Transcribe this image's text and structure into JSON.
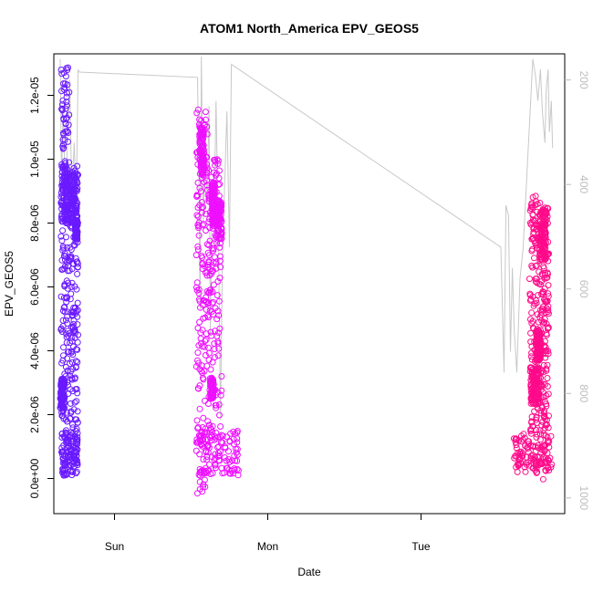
{
  "chart_data": {
    "type": "scatter",
    "title": "ATOM1 North_America EPV_GEOS5",
    "xlabel": "Date",
    "ylabel": "EPV_GEOS5",
    "x_ticks": [
      {
        "label": "Sun",
        "t": 0
      },
      {
        "label": "Mon",
        "t": 24
      },
      {
        "label": "Tue",
        "t": 48
      }
    ],
    "xlim_hours": [
      -9.5,
      70.5
    ],
    "ylim": [
      -1.1e-06,
      1.33e-05
    ],
    "y_ticks": [
      {
        "v": 0,
        "label": "0.0e+00"
      },
      {
        "v": 2e-06,
        "label": "2.0e-06"
      },
      {
        "v": 4e-06,
        "label": "4.0e-06"
      },
      {
        "v": 6e-06,
        "label": "6.0e-06"
      },
      {
        "v": 8e-06,
        "label": "8.0e-06"
      },
      {
        "v": 1e-05,
        "label": "1.0e-05"
      },
      {
        "v": 1.2e-05,
        "label": "1.2e-05"
      }
    ],
    "right_axis": {
      "lim": [
        1030,
        150
      ],
      "ticks": [
        {
          "v": 200,
          "label": "200"
        },
        {
          "v": 400,
          "label": "400"
        },
        {
          "v": 600,
          "label": "600"
        },
        {
          "v": 800,
          "label": "800"
        },
        {
          "v": 1000,
          "label": "1000"
        }
      ],
      "color": "#bdbdbd"
    },
    "series": [
      {
        "color": "#6a1aff",
        "segments": [
          {
            "t0": -8.4,
            "t1": -7.0,
            "low": 0.0,
            "high": 1.29e-05
          },
          {
            "t0": -7.0,
            "t1": -5.7,
            "low": 3e-07,
            "high": 9.8e-06
          }
        ],
        "clusters": [
          {
            "t0": -8.3,
            "t1": -7.3,
            "v": 9e-06,
            "spread": 1e-06
          },
          {
            "t0": -7.4,
            "t1": -5.8,
            "v": 8.8e-06,
            "spread": 8e-07
          },
          {
            "t0": -8.3,
            "t1": -5.7,
            "v": 8e-07,
            "spread": 7e-07
          },
          {
            "t0": -6.2,
            "t1": -5.8,
            "v": 7.8e-06,
            "spread": 3e-07
          },
          {
            "t0": -8.5,
            "t1": -7.8,
            "v": 2.7e-06,
            "spread": 5e-07
          }
        ]
      },
      {
        "color": "#ee10ff",
        "segments": [
          {
            "t0": 12.8,
            "t1": 14.6,
            "low": -5e-07,
            "high": 1.16e-05
          },
          {
            "t0": 14.6,
            "t1": 16.8,
            "low": 2e-07,
            "high": 1e-05
          }
        ],
        "clusters": [
          {
            "t0": 12.8,
            "t1": 19.5,
            "v": 8e-07,
            "spread": 7e-07
          },
          {
            "t0": 13.3,
            "t1": 14.0,
            "v": 1.02e-05,
            "spread": 8e-07
          },
          {
            "t0": 15.2,
            "t1": 15.7,
            "v": 8.6e-06,
            "spread": 7e-07
          },
          {
            "t0": 15.8,
            "t1": 16.8,
            "v": 8.1e-06,
            "spread": 6e-07
          },
          {
            "t0": 15.0,
            "t1": 15.5,
            "v": 2.8e-06,
            "spread": 3e-07
          }
        ]
      },
      {
        "color": "#ff0a8a",
        "segments": [
          {
            "t0": 65.0,
            "t1": 66.8,
            "low": 1e-07,
            "high": 8.9e-06
          },
          {
            "t0": 66.8,
            "t1": 68.0,
            "low": -1e-07,
            "high": 8.5e-06
          }
        ],
        "clusters": [
          {
            "t0": 62.5,
            "t1": 68.5,
            "v": 8e-07,
            "spread": 6e-07
          },
          {
            "t0": 65.2,
            "t1": 66.5,
            "v": 2.9e-06,
            "spread": 6e-07
          },
          {
            "t0": 66.5,
            "t1": 67.6,
            "v": 7.6e-06,
            "spread": 8e-07
          },
          {
            "t0": 66.0,
            "t1": 66.8,
            "v": 4.2e-06,
            "spread": 5e-07
          }
        ]
      }
    ],
    "pressure_line": {
      "color": "#c8c8c8",
      "points": [
        [
          -8.5,
          160
        ],
        [
          -8.3,
          380
        ],
        [
          -8.0,
          250
        ],
        [
          -7.7,
          440
        ],
        [
          -7.3,
          300
        ],
        [
          -7.0,
          200
        ],
        [
          -6.7,
          420
        ],
        [
          -6.3,
          320
        ],
        [
          -6.0,
          450
        ],
        [
          -5.7,
          180
        ],
        [
          -5.5,
          185
        ],
        [
          13.0,
          195
        ],
        [
          13.2,
          380
        ],
        [
          13.4,
          640
        ],
        [
          13.6,
          155
        ],
        [
          13.9,
          470
        ],
        [
          14.2,
          320
        ],
        [
          14.5,
          430
        ],
        [
          14.8,
          250
        ],
        [
          15.0,
          690
        ],
        [
          15.3,
          400
        ],
        [
          15.6,
          460
        ],
        [
          15.9,
          240
        ],
        [
          16.3,
          520
        ],
        [
          16.6,
          850
        ],
        [
          16.9,
          540
        ],
        [
          17.3,
          380
        ],
        [
          17.6,
          260
        ],
        [
          18.0,
          520
        ],
        [
          18.3,
          170
        ],
        [
          60.5,
          520
        ],
        [
          61.0,
          760
        ],
        [
          61.3,
          440
        ],
        [
          61.7,
          460
        ],
        [
          62.0,
          720
        ],
        [
          62.3,
          560
        ],
        [
          62.6,
          680
        ],
        [
          63.0,
          760
        ],
        [
          63.5,
          580
        ],
        [
          64.0,
          520
        ],
        [
          64.5,
          400
        ],
        [
          65.0,
          280
        ],
        [
          65.5,
          160
        ],
        [
          65.9,
          190
        ],
        [
          66.3,
          240
        ],
        [
          66.7,
          180
        ],
        [
          67.0,
          260
        ],
        [
          67.4,
          320
        ],
        [
          67.6,
          220
        ],
        [
          67.9,
          180
        ],
        [
          68.1,
          300
        ],
        [
          68.4,
          240
        ],
        [
          68.6,
          330
        ]
      ]
    }
  }
}
